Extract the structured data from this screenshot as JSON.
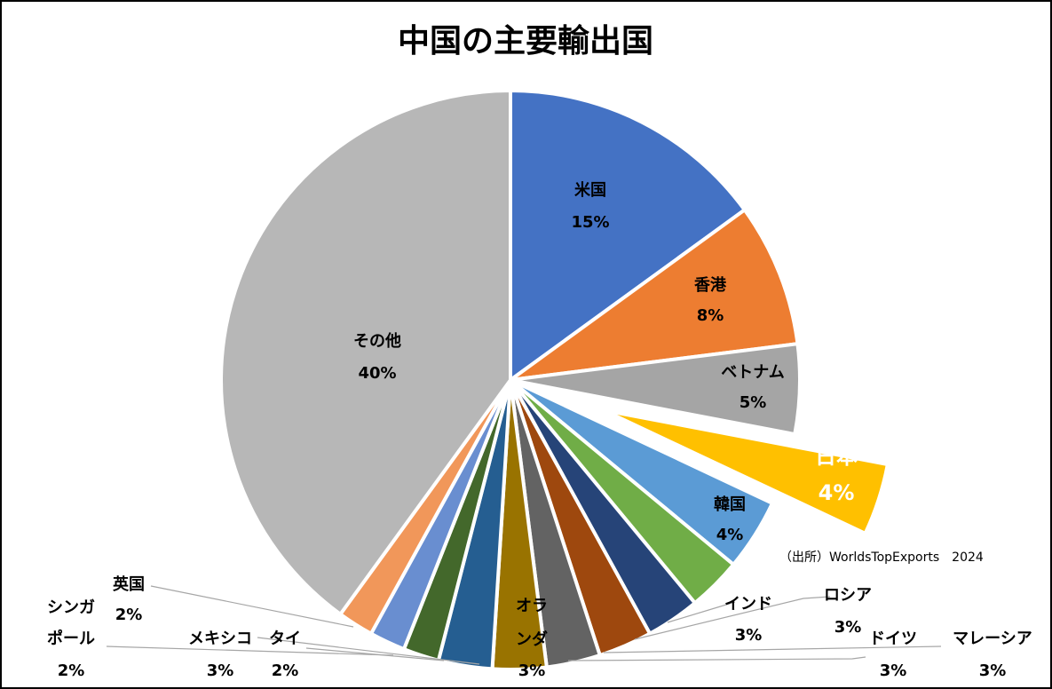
{
  "chart_data": {
    "type": "pie",
    "title": "中国の主要輸出国",
    "source": "（出所）WorldsTopExports　2024",
    "slices": [
      {
        "label": "米国",
        "value": 15,
        "value_label": "15%",
        "color": "#4472c4"
      },
      {
        "label": "香港",
        "value": 8,
        "value_label": "8%",
        "color": "#ed7d31"
      },
      {
        "label": "ベトナム",
        "value": 5,
        "value_label": "5%",
        "color": "#a5a5a5"
      },
      {
        "label": "日本",
        "value": 4,
        "value_label": "4%",
        "color": "#ffc000",
        "exploded": true
      },
      {
        "label": "韓国",
        "value": 4,
        "value_label": "4%",
        "color": "#5b9bd5"
      },
      {
        "label": "インド",
        "value": 3,
        "value_label": "3%",
        "color": "#70ad47"
      },
      {
        "label": "ロシア",
        "value": 3,
        "value_label": "3%",
        "color": "#264478"
      },
      {
        "label": "マレーシア",
        "value": 3,
        "value_label": "3%",
        "color": "#9e480e"
      },
      {
        "label": "ドイツ",
        "value": 3,
        "value_label": "3%",
        "color": "#636363"
      },
      {
        "label": "オランダ",
        "value": 3,
        "value_label": "3%",
        "color": "#997300"
      },
      {
        "label": "メキシコ",
        "value": 3,
        "value_label": "3%",
        "color": "#255e91"
      },
      {
        "label": "タイ",
        "value": 2,
        "value_label": "2%",
        "color": "#43682b"
      },
      {
        "label": "シンガポール",
        "value": 2,
        "value_label": "2%",
        "color": "#698ed0"
      },
      {
        "label": "英国",
        "value": 2,
        "value_label": "2%",
        "color": "#f1975a"
      },
      {
        "label": "その他",
        "value": 40,
        "value_label": "40%",
        "color": "#b7b7b7"
      }
    ]
  }
}
